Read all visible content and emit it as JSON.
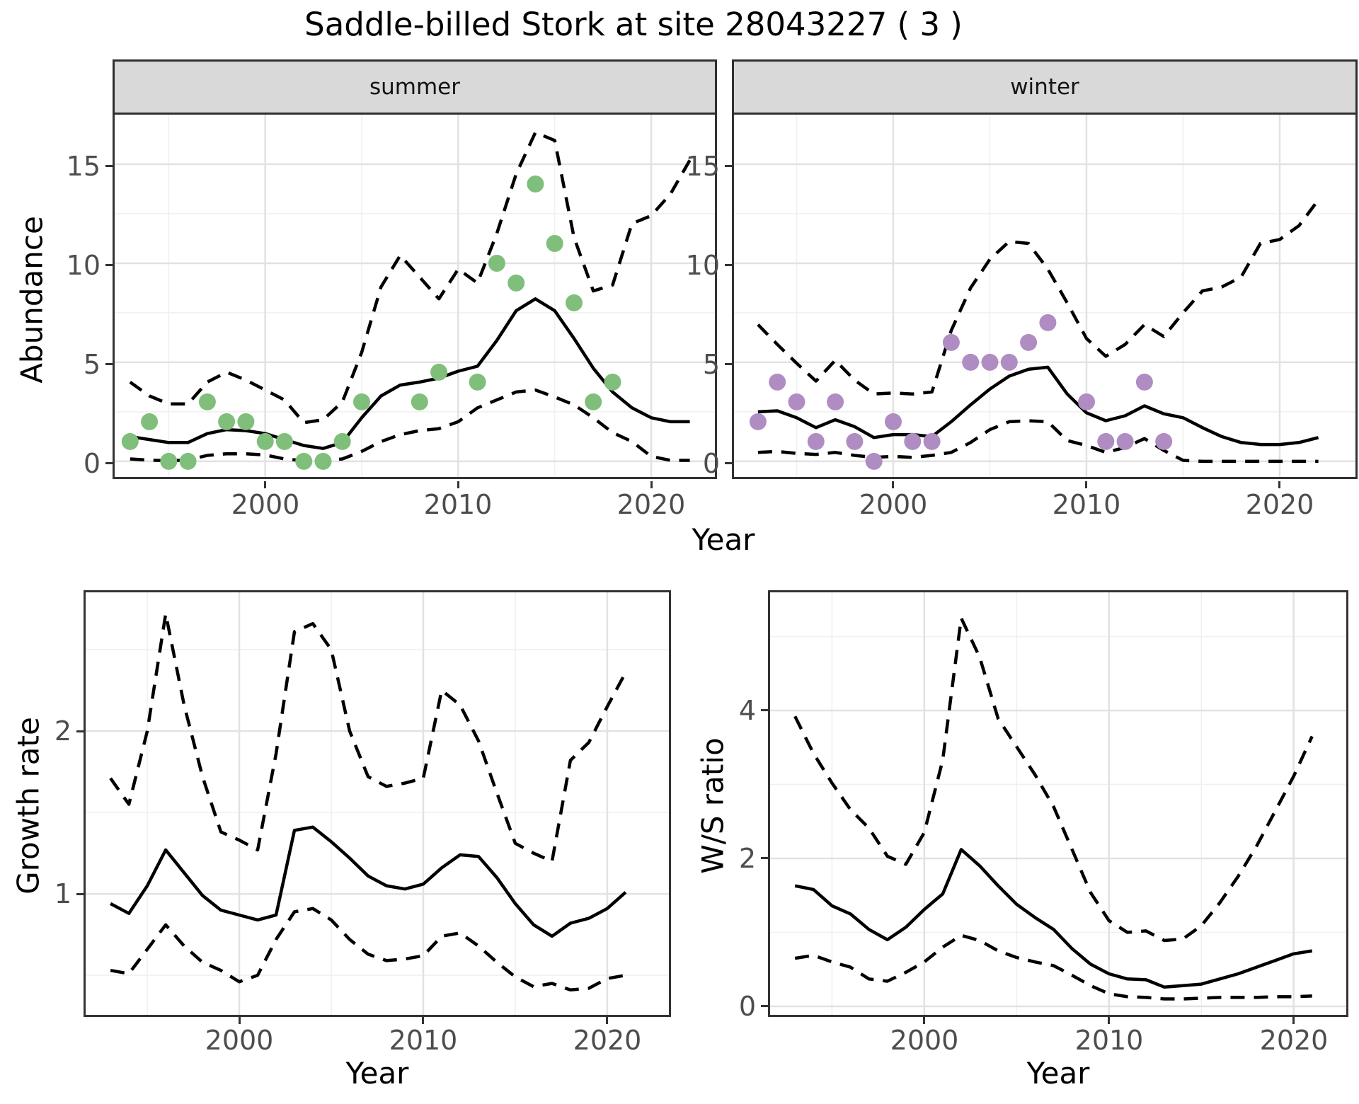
{
  "title": "Saddle-billed Stork at site 28043227 ( 3 )",
  "colors": {
    "summer_points": "#7FBF7B",
    "winter_points": "#AF8DC3",
    "line": "#000000",
    "strip_fill": "#D9D9D9",
    "panel_border": "#333333",
    "grid_major": "#E2E2E2",
    "grid_minor": "#F0F0F0",
    "tick_text": "#4D4D4D"
  },
  "chart_data": [
    {
      "type": "line",
      "facet_label": "summer",
      "xlabel": "Year",
      "ylabel": "Abundance",
      "xlim": [
        1992.2,
        2023.3
      ],
      "ylim": [
        -0.79,
        17.5
      ],
      "x_breaks": [
        2000,
        2010,
        2020
      ],
      "x_minor": [
        1995,
        2005,
        2015
      ],
      "y_breaks": [
        0,
        5,
        10,
        15
      ],
      "y_minor": [
        2.5,
        7.5,
        12.5
      ],
      "grid": true,
      "legend": "none",
      "point_color": "#7FBF7B",
      "points": {
        "x": [
          1993,
          1994,
          1995,
          1996,
          1997,
          1998,
          1999,
          2000,
          2001,
          2002,
          2003,
          2004,
          2005,
          2008,
          2009,
          2011,
          2012,
          2013,
          2014,
          2015,
          2016,
          2017,
          2018
        ],
        "y": [
          1,
          2,
          0,
          0,
          3,
          2,
          2,
          1,
          1,
          0,
          0,
          1,
          3,
          3,
          4.5,
          4,
          10,
          9,
          14,
          11,
          8,
          3,
          4
        ]
      },
      "series": [
        {
          "name": "mean",
          "style": "solid",
          "x": [
            1993,
            1994,
            1995,
            1996,
            1997,
            1998,
            1999,
            2000,
            2001,
            2002,
            2003,
            2004,
            2005,
            2006,
            2007,
            2008,
            2009,
            2010,
            2011,
            2012,
            2013,
            2014,
            2015,
            2016,
            2017,
            2018,
            2019,
            2020,
            2021,
            2022
          ],
          "y": [
            1.25,
            1.1,
            0.95,
            0.95,
            1.4,
            1.6,
            1.55,
            1.4,
            1.1,
            0.8,
            0.65,
            0.95,
            2.2,
            3.3,
            3.85,
            4.0,
            4.2,
            4.55,
            4.8,
            6.1,
            7.6,
            8.2,
            7.6,
            6.2,
            4.7,
            3.5,
            2.7,
            2.2,
            2.0,
            2.0
          ]
        },
        {
          "name": "upper-ci",
          "style": "dashed",
          "x": [
            1993,
            1994,
            1995,
            1996,
            1997,
            1998,
            1999,
            2000,
            2001,
            2002,
            2003,
            2004,
            2005,
            2006,
            2007,
            2008,
            2009,
            2010,
            2011,
            2012,
            2013,
            2014,
            2015,
            2016,
            2017,
            2018,
            2019,
            2020,
            2021,
            2022
          ],
          "y": [
            4.0,
            3.3,
            2.9,
            2.9,
            4.0,
            4.5,
            4.1,
            3.6,
            3.1,
            1.95,
            2.1,
            3.0,
            5.5,
            8.8,
            10.4,
            9.3,
            8.2,
            9.7,
            9.0,
            11.5,
            14.5,
            16.6,
            16.2,
            11.3,
            8.6,
            8.9,
            12.0,
            12.4,
            13.5,
            15.2
          ]
        },
        {
          "name": "lower-ci",
          "style": "dashed",
          "x": [
            1993,
            1994,
            1995,
            1996,
            1997,
            1998,
            1999,
            2000,
            2001,
            2002,
            2003,
            2004,
            2005,
            2006,
            2007,
            2008,
            2009,
            2010,
            2011,
            2012,
            2013,
            2014,
            2015,
            2016,
            2017,
            2018,
            2019,
            2020,
            2021,
            2022
          ],
          "y": [
            0.12,
            0.06,
            0.03,
            0.06,
            0.3,
            0.38,
            0.38,
            0.32,
            0.12,
            0.03,
            0.03,
            0.12,
            0.5,
            1.0,
            1.35,
            1.55,
            1.65,
            2.0,
            2.7,
            3.1,
            3.5,
            3.6,
            3.25,
            2.85,
            2.2,
            1.45,
            1.0,
            0.25,
            0.05,
            0.05
          ]
        }
      ]
    },
    {
      "type": "line",
      "facet_label": "winter",
      "xlabel": "Year",
      "ylabel": "Abundance",
      "xlim": [
        1991.76,
        2023.92
      ],
      "ylim": [
        -0.79,
        17.5
      ],
      "x_breaks": [
        2000,
        2010,
        2020
      ],
      "x_minor": [
        1995,
        2005,
        2015
      ],
      "y_breaks": [
        0,
        5,
        10,
        15
      ],
      "y_minor": [
        2.5,
        7.5,
        12.5
      ],
      "grid": true,
      "legend": "none",
      "point_color": "#AF8DC3",
      "points": {
        "x": [
          1993,
          1994,
          1995,
          1996,
          1997,
          1998,
          1999,
          2000,
          2001,
          2002,
          2003,
          2004,
          2005,
          2006,
          2007,
          2008,
          2010,
          2011,
          2012,
          2013,
          2014
        ],
        "y": [
          2,
          4,
          3,
          1,
          3,
          1,
          0,
          2,
          1,
          1,
          6,
          5,
          5,
          5,
          6,
          7,
          3,
          1,
          1,
          4,
          1
        ]
      },
      "series": [
        {
          "name": "mean",
          "style": "solid",
          "x": [
            1993,
            1994,
            1995,
            1996,
            1997,
            1998,
            1999,
            2000,
            2001,
            2002,
            2003,
            2004,
            2005,
            2006,
            2007,
            2008,
            2009,
            2010,
            2011,
            2012,
            2013,
            2014,
            2015,
            2016,
            2017,
            2018,
            2019,
            2020,
            2021,
            2022
          ],
          "y": [
            2.5,
            2.55,
            2.2,
            1.7,
            2.1,
            1.75,
            1.2,
            1.35,
            1.35,
            1.25,
            2.0,
            2.85,
            3.65,
            4.3,
            4.65,
            4.75,
            3.4,
            2.45,
            2.05,
            2.3,
            2.8,
            2.4,
            2.2,
            1.7,
            1.25,
            0.95,
            0.85,
            0.85,
            0.95,
            1.2
          ]
        },
        {
          "name": "upper-ci",
          "style": "dashed",
          "x": [
            1993,
            1994,
            1995,
            1996,
            1997,
            1998,
            1999,
            2000,
            2001,
            2002,
            2003,
            2004,
            2005,
            2006,
            2007,
            2008,
            2009,
            2010,
            2011,
            2012,
            2013,
            2014,
            2015,
            2016,
            2017,
            2018,
            2019,
            2020,
            2021,
            2022
          ],
          "y": [
            6.9,
            5.9,
            4.95,
            4.05,
            5.1,
            4.1,
            3.4,
            3.45,
            3.4,
            3.5,
            6.6,
            8.75,
            10.2,
            11.1,
            11.0,
            9.7,
            8.0,
            6.2,
            5.3,
            5.9,
            6.9,
            6.3,
            7.5,
            8.6,
            8.8,
            9.3,
            11.0,
            11.2,
            11.9,
            13.2
          ]
        },
        {
          "name": "lower-ci",
          "style": "dashed",
          "x": [
            1993,
            1994,
            1995,
            1996,
            1997,
            1998,
            1999,
            2000,
            2001,
            2002,
            2003,
            2004,
            2005,
            2006,
            2007,
            2008,
            2009,
            2010,
            2011,
            2012,
            2013,
            2014,
            2015,
            2016,
            2017,
            2018,
            2019,
            2020,
            2021,
            2022
          ],
          "y": [
            0.45,
            0.5,
            0.4,
            0.35,
            0.45,
            0.3,
            0.2,
            0.25,
            0.2,
            0.3,
            0.45,
            0.95,
            1.6,
            2.0,
            2.05,
            2.0,
            1.05,
            0.8,
            0.45,
            0.7,
            1.15,
            0.55,
            0.05,
            0.0,
            0.0,
            0.0,
            0.0,
            0.0,
            0.0,
            0.0
          ]
        }
      ]
    },
    {
      "type": "line",
      "facet_label": "",
      "xlabel": "Year",
      "ylabel": "Growth rate",
      "xlim": [
        1991.65,
        2023.35
      ],
      "ylim": [
        0.257,
        2.852
      ],
      "x_breaks": [
        2000,
        2010,
        2020
      ],
      "x_minor": [
        1995,
        2005,
        2015
      ],
      "y_breaks": [
        1,
        2
      ],
      "y_minor": [
        0.5,
        1.5,
        2.5
      ],
      "grid": true,
      "legend": "none",
      "point_color": null,
      "points": {
        "x": [],
        "y": []
      },
      "series": [
        {
          "name": "mean",
          "style": "solid",
          "x": [
            1993,
            1994,
            1995,
            1996,
            1997,
            1998,
            1999,
            2000,
            2001,
            2002,
            2003,
            2004,
            2005,
            2006,
            2007,
            2008,
            2009,
            2010,
            2011,
            2012,
            2013,
            2014,
            2015,
            2016,
            2017,
            2018,
            2019,
            2020,
            2021
          ],
          "y": [
            0.94,
            0.88,
            1.05,
            1.27,
            1.13,
            0.99,
            0.9,
            0.87,
            0.84,
            0.87,
            1.39,
            1.41,
            1.32,
            1.22,
            1.11,
            1.05,
            1.03,
            1.06,
            1.16,
            1.24,
            1.23,
            1.1,
            0.94,
            0.81,
            0.74,
            0.82,
            0.85,
            0.91,
            1.01
          ]
        },
        {
          "name": "upper-ci",
          "style": "dashed",
          "x": [
            1993,
            1994,
            1995,
            1996,
            1997,
            1998,
            1999,
            2000,
            2001,
            2002,
            2003,
            2004,
            2005,
            2006,
            2007,
            2008,
            2009,
            2010,
            2011,
            2012,
            2013,
            2014,
            2015,
            2016,
            2017,
            2018,
            2019,
            2020,
            2021
          ],
          "y": [
            1.71,
            1.55,
            2.0,
            2.72,
            2.16,
            1.72,
            1.38,
            1.33,
            1.27,
            1.86,
            2.61,
            2.66,
            2.5,
            2.0,
            1.72,
            1.66,
            1.68,
            1.71,
            2.25,
            2.16,
            1.94,
            1.62,
            1.31,
            1.25,
            1.2,
            1.82,
            1.93,
            2.15,
            2.36
          ]
        },
        {
          "name": "lower-ci",
          "style": "dashed",
          "x": [
            1993,
            1994,
            1995,
            1996,
            1997,
            1998,
            1999,
            2000,
            2001,
            2002,
            2003,
            2004,
            2005,
            2006,
            2007,
            2008,
            2009,
            2010,
            2011,
            2012,
            2013,
            2014,
            2015,
            2016,
            2017,
            2018,
            2019,
            2020,
            2021
          ],
          "y": [
            0.53,
            0.51,
            0.66,
            0.81,
            0.68,
            0.58,
            0.53,
            0.46,
            0.5,
            0.72,
            0.89,
            0.91,
            0.84,
            0.72,
            0.63,
            0.59,
            0.6,
            0.62,
            0.74,
            0.76,
            0.68,
            0.58,
            0.49,
            0.43,
            0.45,
            0.41,
            0.42,
            0.48,
            0.5
          ]
        }
      ]
    },
    {
      "type": "line",
      "facet_label": "",
      "xlabel": "Year",
      "ylabel": "W/S ratio",
      "xlim": [
        1991.65,
        2022.85
      ],
      "ylim": [
        -0.115,
        5.598
      ],
      "x_breaks": [
        2000,
        2010,
        2020
      ],
      "x_minor": [
        1995,
        2005,
        2015
      ],
      "y_breaks": [
        0,
        2,
        4
      ],
      "y_minor": [
        1,
        3,
        5
      ],
      "grid": true,
      "legend": "none",
      "point_color": null,
      "points": {
        "x": [],
        "y": []
      },
      "series": [
        {
          "name": "mean",
          "style": "solid",
          "x": [
            1993,
            1994,
            1995,
            1996,
            1997,
            1998,
            1999,
            2000,
            2001,
            2002,
            2003,
            2004,
            2005,
            2006,
            2007,
            2008,
            2009,
            2010,
            2011,
            2012,
            2013,
            2014,
            2015,
            2016,
            2017,
            2018,
            2019,
            2020,
            2021
          ],
          "y": [
            1.63,
            1.58,
            1.36,
            1.25,
            1.04,
            0.9,
            1.07,
            1.31,
            1.52,
            2.12,
            1.9,
            1.63,
            1.38,
            1.2,
            1.04,
            0.78,
            0.57,
            0.44,
            0.37,
            0.36,
            0.26,
            0.28,
            0.3,
            0.37,
            0.44,
            0.53,
            0.62,
            0.71,
            0.75
          ]
        },
        {
          "name": "upper-ci",
          "style": "dashed",
          "x": [
            1993,
            1994,
            1995,
            1996,
            1997,
            1998,
            1999,
            2000,
            2001,
            2002,
            2003,
            2004,
            2005,
            2006,
            2007,
            2008,
            2009,
            2010,
            2011,
            2012,
            2013,
            2014,
            2015,
            2016,
            2017,
            2018,
            2019,
            2020,
            2021
          ],
          "y": [
            3.92,
            3.42,
            3.02,
            2.66,
            2.41,
            2.03,
            1.92,
            2.35,
            3.33,
            5.25,
            4.72,
            3.89,
            3.51,
            3.13,
            2.7,
            2.12,
            1.54,
            1.16,
            1.0,
            1.02,
            0.89,
            0.91,
            1.09,
            1.4,
            1.76,
            2.17,
            2.64,
            3.11,
            3.65
          ]
        },
        {
          "name": "lower-ci",
          "style": "dashed",
          "x": [
            1993,
            1994,
            1995,
            1996,
            1997,
            1998,
            1999,
            2000,
            2001,
            2002,
            2003,
            2004,
            2005,
            2006,
            2007,
            2008,
            2009,
            2010,
            2011,
            2012,
            2013,
            2014,
            2015,
            2016,
            2017,
            2018,
            2019,
            2020,
            2021
          ],
          "y": [
            0.65,
            0.69,
            0.6,
            0.53,
            0.37,
            0.34,
            0.46,
            0.6,
            0.8,
            0.96,
            0.89,
            0.75,
            0.66,
            0.6,
            0.55,
            0.42,
            0.28,
            0.17,
            0.13,
            0.12,
            0.1,
            0.1,
            0.11,
            0.12,
            0.12,
            0.12,
            0.13,
            0.13,
            0.14
          ]
        }
      ]
    }
  ]
}
